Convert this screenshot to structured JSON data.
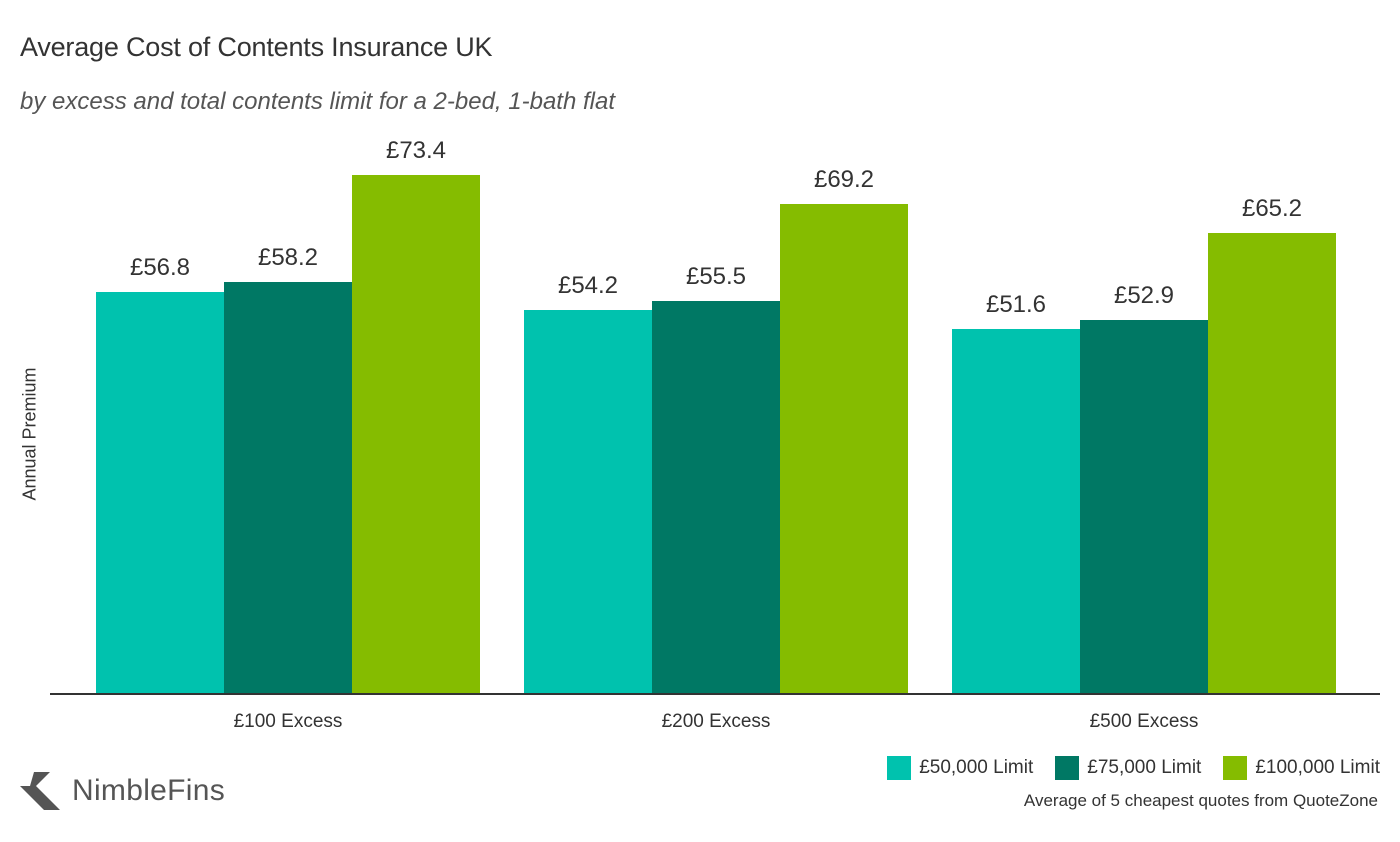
{
  "header": {
    "title": "Average Cost of Contents Insurance UK",
    "subtitle": "by excess and total contents limit for a 2-bed, 1-bath flat"
  },
  "footer": {
    "logo_text": "NimbleFins",
    "source": "Average of 5 cheapest quotes from QuoteZone"
  },
  "chart_data": {
    "type": "bar",
    "title": "Average Cost of Contents Insurance UK",
    "subtitle": "by excess and total contents limit for a 2-bed, 1-bath flat",
    "xlabel": "",
    "ylabel": "Annual Premium",
    "categories": [
      "£100 Excess",
      "£200 Excess",
      "£500 Excess"
    ],
    "series": [
      {
        "name": "£50,000 Limit",
        "color": "#00c2ae",
        "values": [
          56.8,
          54.2,
          51.6
        ],
        "labels": [
          "£56.8",
          "£54.2",
          "£51.6"
        ]
      },
      {
        "name": "£75,000 Limit",
        "color": "#007864",
        "values": [
          58.2,
          55.5,
          52.9
        ],
        "labels": [
          "£58.2",
          "£55.5",
          "£52.9"
        ]
      },
      {
        "name": "£100,000 Limit",
        "color": "#85bc00",
        "values": [
          73.4,
          69.2,
          65.2
        ],
        "labels": [
          "£73.4",
          "£69.2",
          "£65.2"
        ]
      }
    ],
    "ylim": [
      0,
      78
    ],
    "grid": false,
    "legend_position": "bottom-right",
    "value_labels": true,
    "annotations": [
      "Average of 5 cheapest quotes from QuoteZone"
    ]
  }
}
